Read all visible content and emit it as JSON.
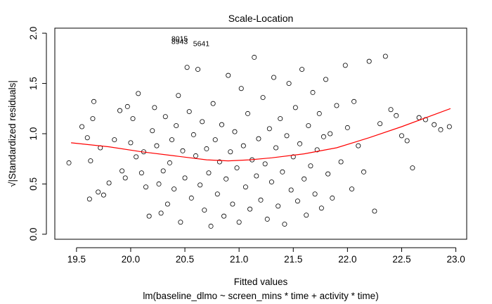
{
  "chart_data": {
    "type": "scatter",
    "title": "Scale-Location",
    "xlabel": "Fitted values",
    "sub_caption": "lm(baseline_dlmo ~ screen_mins * time + activity * time)",
    "ylabel": "√|Standardized residuals|",
    "xlim": [
      19.3,
      23.1
    ],
    "ylim": [
      -0.05,
      2.05
    ],
    "x_ticks": [
      "19.5",
      "20.0",
      "20.5",
      "21.0",
      "21.5",
      "22.0",
      "22.5",
      "23.0"
    ],
    "y_ticks": [
      "0.0",
      "0.5",
      "1.0",
      "1.5",
      "2.0"
    ],
    "x_tick_values": [
      19.5,
      20.0,
      20.5,
      21.0,
      21.5,
      22.0,
      22.5,
      23.0
    ],
    "y_tick_values": [
      0.0,
      0.5,
      1.0,
      1.5,
      2.0
    ],
    "annotations": [
      {
        "text": "8015",
        "x": 20.35,
        "y": 1.95
      },
      {
        "text": "8943",
        "x": 20.35,
        "y": 1.92
      },
      {
        "text": "5641",
        "x": 20.55,
        "y": 1.9
      }
    ],
    "smooth_line": {
      "color": "#ff0000",
      "x": [
        19.45,
        19.8,
        20.1,
        20.4,
        20.7,
        20.9,
        21.1,
        21.3,
        21.6,
        21.9,
        22.2,
        22.5,
        22.95
      ],
      "y": [
        0.91,
        0.87,
        0.82,
        0.78,
        0.74,
        0.73,
        0.74,
        0.76,
        0.8,
        0.86,
        0.96,
        1.07,
        1.25
      ]
    },
    "points": [
      [
        19.43,
        0.71
      ],
      [
        19.55,
        1.07
      ],
      [
        19.6,
        0.96
      ],
      [
        19.62,
        0.35
      ],
      [
        19.63,
        0.73
      ],
      [
        19.65,
        1.15
      ],
      [
        19.66,
        1.32
      ],
      [
        19.7,
        0.42
      ],
      [
        19.72,
        0.86
      ],
      [
        19.75,
        0.39
      ],
      [
        19.8,
        0.51
      ],
      [
        19.85,
        0.94
      ],
      [
        19.9,
        1.23
      ],
      [
        19.92,
        0.63
      ],
      [
        19.95,
        0.56
      ],
      [
        19.97,
        1.27
      ],
      [
        20.0,
        0.91
      ],
      [
        20.02,
        1.15
      ],
      [
        20.05,
        0.77
      ],
      [
        20.07,
        1.4
      ],
      [
        20.1,
        0.61
      ],
      [
        20.12,
        0.82
      ],
      [
        20.14,
        0.47
      ],
      [
        20.17,
        0.18
      ],
      [
        20.2,
        1.03
      ],
      [
        20.22,
        1.26
      ],
      [
        20.24,
        0.88
      ],
      [
        20.26,
        0.5
      ],
      [
        20.28,
        0.21
      ],
      [
        20.3,
        0.63
      ],
      [
        20.32,
        1.17
      ],
      [
        20.34,
        0.3
      ],
      [
        20.36,
        0.71
      ],
      [
        20.38,
        0.94
      ],
      [
        20.4,
        0.45
      ],
      [
        20.42,
        1.08
      ],
      [
        20.44,
        1.38
      ],
      [
        20.46,
        0.12
      ],
      [
        20.48,
        0.83
      ],
      [
        20.5,
        0.56
      ],
      [
        20.52,
        1.66
      ],
      [
        20.54,
        1.22
      ],
      [
        20.56,
        0.36
      ],
      [
        20.58,
        0.99
      ],
      [
        20.6,
        0.78
      ],
      [
        20.62,
        1.64
      ],
      [
        20.64,
        0.49
      ],
      [
        20.66,
        1.12
      ],
      [
        20.68,
        0.24
      ],
      [
        20.7,
        0.85
      ],
      [
        20.72,
        0.61
      ],
      [
        20.74,
        0.08
      ],
      [
        20.76,
        1.3
      ],
      [
        20.78,
        0.94
      ],
      [
        20.8,
        0.4
      ],
      [
        20.82,
        0.72
      ],
      [
        20.84,
        1.09
      ],
      [
        20.86,
        0.18
      ],
      [
        20.88,
        0.55
      ],
      [
        20.9,
        1.58
      ],
      [
        20.92,
        0.82
      ],
      [
        20.94,
        0.3
      ],
      [
        20.96,
        1.02
      ],
      [
        20.98,
        0.66
      ],
      [
        21.0,
        0.12
      ],
      [
        21.02,
        1.45
      ],
      [
        21.04,
        0.88
      ],
      [
        21.06,
        0.47
      ],
      [
        21.08,
        1.2
      ],
      [
        21.1,
        0.25
      ],
      [
        21.12,
        0.74
      ],
      [
        21.14,
        1.76
      ],
      [
        21.16,
        0.58
      ],
      [
        21.18,
        0.95
      ],
      [
        21.2,
        0.34
      ],
      [
        21.22,
        1.36
      ],
      [
        21.24,
        0.7
      ],
      [
        21.26,
        0.15
      ],
      [
        21.28,
        1.05
      ],
      [
        21.3,
        0.52
      ],
      [
        21.32,
        1.56
      ],
      [
        21.34,
        0.86
      ],
      [
        21.36,
        0.28
      ],
      [
        21.38,
        1.15
      ],
      [
        21.4,
        0.62
      ],
      [
        21.42,
        0.1
      ],
      [
        21.44,
        0.98
      ],
      [
        21.46,
        1.5
      ],
      [
        21.48,
        0.44
      ],
      [
        21.5,
        0.77
      ],
      [
        21.52,
        1.26
      ],
      [
        21.54,
        0.33
      ],
      [
        21.56,
        0.9
      ],
      [
        21.58,
        1.64
      ],
      [
        21.6,
        0.55
      ],
      [
        21.62,
        0.19
      ],
      [
        21.64,
        1.08
      ],
      [
        21.66,
        0.68
      ],
      [
        21.68,
        1.41
      ],
      [
        21.7,
        0.4
      ],
      [
        21.72,
        0.84
      ],
      [
        21.74,
        1.2
      ],
      [
        21.76,
        0.26
      ],
      [
        21.78,
        0.97
      ],
      [
        21.8,
        1.54
      ],
      [
        21.82,
        0.6
      ],
      [
        21.84,
        1.0
      ],
      [
        21.86,
        0.36
      ],
      [
        21.9,
        1.28
      ],
      [
        21.94,
        0.72
      ],
      [
        21.98,
        1.68
      ],
      [
        22.0,
        1.06
      ],
      [
        22.04,
        0.45
      ],
      [
        22.06,
        1.32
      ],
      [
        22.1,
        0.88
      ],
      [
        22.15,
        0.62
      ],
      [
        22.2,
        1.72
      ],
      [
        22.25,
        0.23
      ],
      [
        22.3,
        1.1
      ],
      [
        22.35,
        1.77
      ],
      [
        22.4,
        1.24
      ],
      [
        22.45,
        1.18
      ],
      [
        22.5,
        0.98
      ],
      [
        22.55,
        0.93
      ],
      [
        22.6,
        0.66
      ],
      [
        22.66,
        1.16
      ],
      [
        22.72,
        1.14
      ],
      [
        22.8,
        1.09
      ],
      [
        22.86,
        1.04
      ],
      [
        22.94,
        1.07
      ]
    ]
  }
}
